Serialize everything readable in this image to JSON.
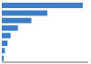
{
  "chart_data": {
    "type": "bar",
    "orientation": "horizontal",
    "categories": [
      null,
      null,
      null,
      null,
      null,
      null,
      null,
      null
    ],
    "values": [
      468,
      263,
      171,
      93,
      51,
      33,
      18,
      11
    ],
    "color": "#3c7ec8",
    "xlim": [
      0,
      500
    ],
    "tick_labels": false
  }
}
